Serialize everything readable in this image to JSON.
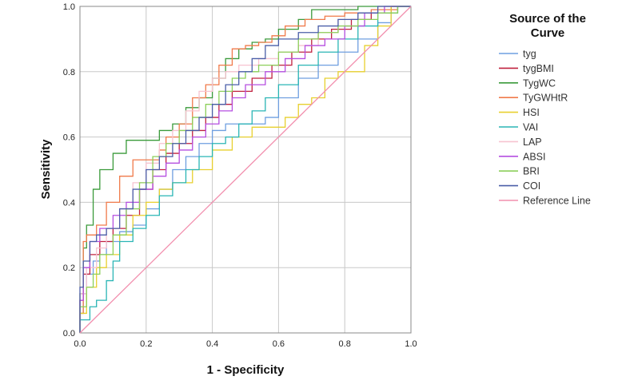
{
  "chart_data": {
    "type": "line",
    "title": "",
    "xlabel": "1 - Specificity",
    "ylabel": "Sensitivity",
    "xlim": [
      0,
      1
    ],
    "ylim": [
      0,
      1
    ],
    "xticks": [
      "0.0",
      "0.2",
      "0.4",
      "0.6",
      "0.8",
      "1.0"
    ],
    "yticks": [
      "0.0",
      "0.2",
      "0.4",
      "0.6",
      "0.8",
      "1.0"
    ],
    "grid": true,
    "legend_title_lines": [
      "Source of the",
      "Curve"
    ],
    "legend_position": "right",
    "series": [
      {
        "name": "tyg",
        "color": "#6f9fe0",
        "points": [
          [
            0,
            0
          ],
          [
            0.01,
            0.06
          ],
          [
            0.02,
            0.12
          ],
          [
            0.04,
            0.18
          ],
          [
            0.06,
            0.22
          ],
          [
            0.08,
            0.24
          ],
          [
            0.12,
            0.28
          ],
          [
            0.16,
            0.31
          ],
          [
            0.2,
            0.33
          ],
          [
            0.24,
            0.38
          ],
          [
            0.28,
            0.44
          ],
          [
            0.32,
            0.5
          ],
          [
            0.36,
            0.54
          ],
          [
            0.4,
            0.58
          ],
          [
            0.44,
            0.62
          ],
          [
            0.5,
            0.64
          ],
          [
            0.56,
            0.64
          ],
          [
            0.6,
            0.66
          ],
          [
            0.66,
            0.72
          ],
          [
            0.72,
            0.78
          ],
          [
            0.78,
            0.82
          ],
          [
            0.84,
            0.86
          ],
          [
            0.9,
            0.9
          ],
          [
            0.94,
            0.95
          ],
          [
            1,
            1
          ]
        ]
      },
      {
        "name": "tygBMI",
        "color": "#c0213f",
        "points": [
          [
            0,
            0
          ],
          [
            0.01,
            0.1
          ],
          [
            0.03,
            0.18
          ],
          [
            0.06,
            0.24
          ],
          [
            0.1,
            0.28
          ],
          [
            0.14,
            0.32
          ],
          [
            0.18,
            0.36
          ],
          [
            0.22,
            0.44
          ],
          [
            0.26,
            0.5
          ],
          [
            0.3,
            0.55
          ],
          [
            0.34,
            0.58
          ],
          [
            0.38,
            0.62
          ],
          [
            0.42,
            0.66
          ],
          [
            0.46,
            0.7
          ],
          [
            0.52,
            0.74
          ],
          [
            0.58,
            0.78
          ],
          [
            0.64,
            0.82
          ],
          [
            0.7,
            0.86
          ],
          [
            0.76,
            0.9
          ],
          [
            0.82,
            0.93
          ],
          [
            0.88,
            0.96
          ],
          [
            0.94,
            0.98
          ],
          [
            1,
            1
          ]
        ]
      },
      {
        "name": "TygWC",
        "color": "#3a9a3a",
        "points": [
          [
            0,
            0
          ],
          [
            0.01,
            0.12
          ],
          [
            0.02,
            0.26
          ],
          [
            0.04,
            0.33
          ],
          [
            0.06,
            0.44
          ],
          [
            0.1,
            0.5
          ],
          [
            0.14,
            0.55
          ],
          [
            0.18,
            0.59
          ],
          [
            0.24,
            0.59
          ],
          [
            0.28,
            0.62
          ],
          [
            0.32,
            0.64
          ],
          [
            0.36,
            0.69
          ],
          [
            0.4,
            0.72
          ],
          [
            0.44,
            0.78
          ],
          [
            0.48,
            0.84
          ],
          [
            0.52,
            0.87
          ],
          [
            0.56,
            0.89
          ],
          [
            0.6,
            0.9
          ],
          [
            0.66,
            0.93
          ],
          [
            0.7,
            0.96
          ],
          [
            0.76,
            0.99
          ],
          [
            0.84,
            0.99
          ],
          [
            0.9,
            1.0
          ],
          [
            1,
            1
          ]
        ]
      },
      {
        "name": "TyGWHtR",
        "color": "#f07a4a",
        "points": [
          [
            0,
            0
          ],
          [
            0.01,
            0.06
          ],
          [
            0.02,
            0.28
          ],
          [
            0.05,
            0.3
          ],
          [
            0.08,
            0.33
          ],
          [
            0.12,
            0.4
          ],
          [
            0.16,
            0.48
          ],
          [
            0.18,
            0.53
          ],
          [
            0.24,
            0.53
          ],
          [
            0.26,
            0.56
          ],
          [
            0.3,
            0.6
          ],
          [
            0.34,
            0.64
          ],
          [
            0.38,
            0.72
          ],
          [
            0.42,
            0.76
          ],
          [
            0.46,
            0.82
          ],
          [
            0.5,
            0.87
          ],
          [
            0.54,
            0.88
          ],
          [
            0.58,
            0.89
          ],
          [
            0.62,
            0.91
          ],
          [
            0.68,
            0.94
          ],
          [
            0.74,
            0.96
          ],
          [
            0.8,
            0.97
          ],
          [
            0.88,
            0.98
          ],
          [
            0.96,
            0.99
          ],
          [
            1,
            1
          ]
        ]
      },
      {
        "name": "HSI",
        "color": "#e8d02f",
        "points": [
          [
            0,
            0
          ],
          [
            0.02,
            0.06
          ],
          [
            0.05,
            0.14
          ],
          [
            0.08,
            0.2
          ],
          [
            0.12,
            0.24
          ],
          [
            0.16,
            0.3
          ],
          [
            0.2,
            0.36
          ],
          [
            0.24,
            0.4
          ],
          [
            0.28,
            0.44
          ],
          [
            0.34,
            0.46
          ],
          [
            0.4,
            0.5
          ],
          [
            0.46,
            0.56
          ],
          [
            0.52,
            0.6
          ],
          [
            0.58,
            0.63
          ],
          [
            0.62,
            0.63
          ],
          [
            0.66,
            0.66
          ],
          [
            0.7,
            0.7
          ],
          [
            0.74,
            0.72
          ],
          [
            0.78,
            0.78
          ],
          [
            0.82,
            0.8
          ],
          [
            0.86,
            0.8
          ],
          [
            0.9,
            0.88
          ],
          [
            0.94,
            0.94
          ],
          [
            1,
            1
          ]
        ]
      },
      {
        "name": "VAI",
        "color": "#2ab5b5",
        "points": [
          [
            0,
            0
          ],
          [
            0.03,
            0.04
          ],
          [
            0.05,
            0.08
          ],
          [
            0.08,
            0.1
          ],
          [
            0.1,
            0.16
          ],
          [
            0.12,
            0.22
          ],
          [
            0.16,
            0.28
          ],
          [
            0.2,
            0.32
          ],
          [
            0.24,
            0.36
          ],
          [
            0.28,
            0.42
          ],
          [
            0.32,
            0.46
          ],
          [
            0.36,
            0.5
          ],
          [
            0.4,
            0.54
          ],
          [
            0.44,
            0.58
          ],
          [
            0.48,
            0.6
          ],
          [
            0.52,
            0.64
          ],
          [
            0.56,
            0.68
          ],
          [
            0.6,
            0.72
          ],
          [
            0.66,
            0.76
          ],
          [
            0.72,
            0.82
          ],
          [
            0.78,
            0.86
          ],
          [
            0.84,
            0.9
          ],
          [
            0.9,
            0.94
          ],
          [
            0.96,
            0.98
          ],
          [
            1,
            1
          ]
        ]
      },
      {
        "name": "LAP",
        "color": "#f7c3d0",
        "points": [
          [
            0,
            0
          ],
          [
            0.02,
            0.12
          ],
          [
            0.05,
            0.2
          ],
          [
            0.08,
            0.26
          ],
          [
            0.12,
            0.32
          ],
          [
            0.16,
            0.38
          ],
          [
            0.2,
            0.46
          ],
          [
            0.24,
            0.52
          ],
          [
            0.28,
            0.58
          ],
          [
            0.32,
            0.62
          ],
          [
            0.36,
            0.68
          ],
          [
            0.4,
            0.74
          ],
          [
            0.44,
            0.78
          ],
          [
            0.48,
            0.8
          ],
          [
            0.54,
            0.82
          ],
          [
            0.6,
            0.84
          ],
          [
            0.66,
            0.86
          ],
          [
            0.72,
            0.88
          ],
          [
            0.78,
            0.92
          ],
          [
            0.84,
            0.96
          ],
          [
            0.9,
            0.98
          ],
          [
            0.96,
            1.0
          ],
          [
            1,
            1
          ]
        ]
      },
      {
        "name": "ABSI",
        "color": "#b54fe0",
        "points": [
          [
            0,
            0
          ],
          [
            0.01,
            0.1
          ],
          [
            0.03,
            0.2
          ],
          [
            0.06,
            0.28
          ],
          [
            0.1,
            0.32
          ],
          [
            0.14,
            0.36
          ],
          [
            0.18,
            0.4
          ],
          [
            0.22,
            0.44
          ],
          [
            0.26,
            0.48
          ],
          [
            0.3,
            0.52
          ],
          [
            0.34,
            0.56
          ],
          [
            0.38,
            0.6
          ],
          [
            0.42,
            0.64
          ],
          [
            0.46,
            0.68
          ],
          [
            0.5,
            0.72
          ],
          [
            0.56,
            0.76
          ],
          [
            0.62,
            0.8
          ],
          [
            0.68,
            0.84
          ],
          [
            0.74,
            0.88
          ],
          [
            0.8,
            0.9
          ],
          [
            0.86,
            0.94
          ],
          [
            0.92,
            0.98
          ],
          [
            1,
            1
          ]
        ]
      },
      {
        "name": "BRI",
        "color": "#8ccf5a",
        "points": [
          [
            0,
            0
          ],
          [
            0.02,
            0.08
          ],
          [
            0.04,
            0.14
          ],
          [
            0.06,
            0.18
          ],
          [
            0.1,
            0.24
          ],
          [
            0.14,
            0.3
          ],
          [
            0.18,
            0.38
          ],
          [
            0.22,
            0.46
          ],
          [
            0.26,
            0.54
          ],
          [
            0.3,
            0.58
          ],
          [
            0.34,
            0.62
          ],
          [
            0.38,
            0.66
          ],
          [
            0.42,
            0.7
          ],
          [
            0.46,
            0.74
          ],
          [
            0.5,
            0.78
          ],
          [
            0.54,
            0.8
          ],
          [
            0.6,
            0.82
          ],
          [
            0.66,
            0.86
          ],
          [
            0.72,
            0.9
          ],
          [
            0.78,
            0.92
          ],
          [
            0.84,
            0.94
          ],
          [
            0.9,
            0.96
          ],
          [
            0.96,
            0.98
          ],
          [
            1,
            1
          ]
        ]
      },
      {
        "name": "COI",
        "color": "#4a5ea8",
        "points": [
          [
            0,
            0
          ],
          [
            0.01,
            0.14
          ],
          [
            0.03,
            0.22
          ],
          [
            0.05,
            0.28
          ],
          [
            0.08,
            0.3
          ],
          [
            0.12,
            0.32
          ],
          [
            0.16,
            0.38
          ],
          [
            0.2,
            0.44
          ],
          [
            0.24,
            0.5
          ],
          [
            0.28,
            0.54
          ],
          [
            0.32,
            0.58
          ],
          [
            0.36,
            0.62
          ],
          [
            0.4,
            0.66
          ],
          [
            0.44,
            0.7
          ],
          [
            0.48,
            0.76
          ],
          [
            0.52,
            0.8
          ],
          [
            0.56,
            0.84
          ],
          [
            0.6,
            0.88
          ],
          [
            0.66,
            0.9
          ],
          [
            0.72,
            0.92
          ],
          [
            0.78,
            0.94
          ],
          [
            0.84,
            0.96
          ],
          [
            0.9,
            0.98
          ],
          [
            0.96,
            1.0
          ],
          [
            1,
            1
          ]
        ]
      },
      {
        "name": "Reference Line",
        "color": "#f28fae",
        "points": [
          [
            0,
            0
          ],
          [
            1,
            1
          ]
        ]
      }
    ]
  }
}
